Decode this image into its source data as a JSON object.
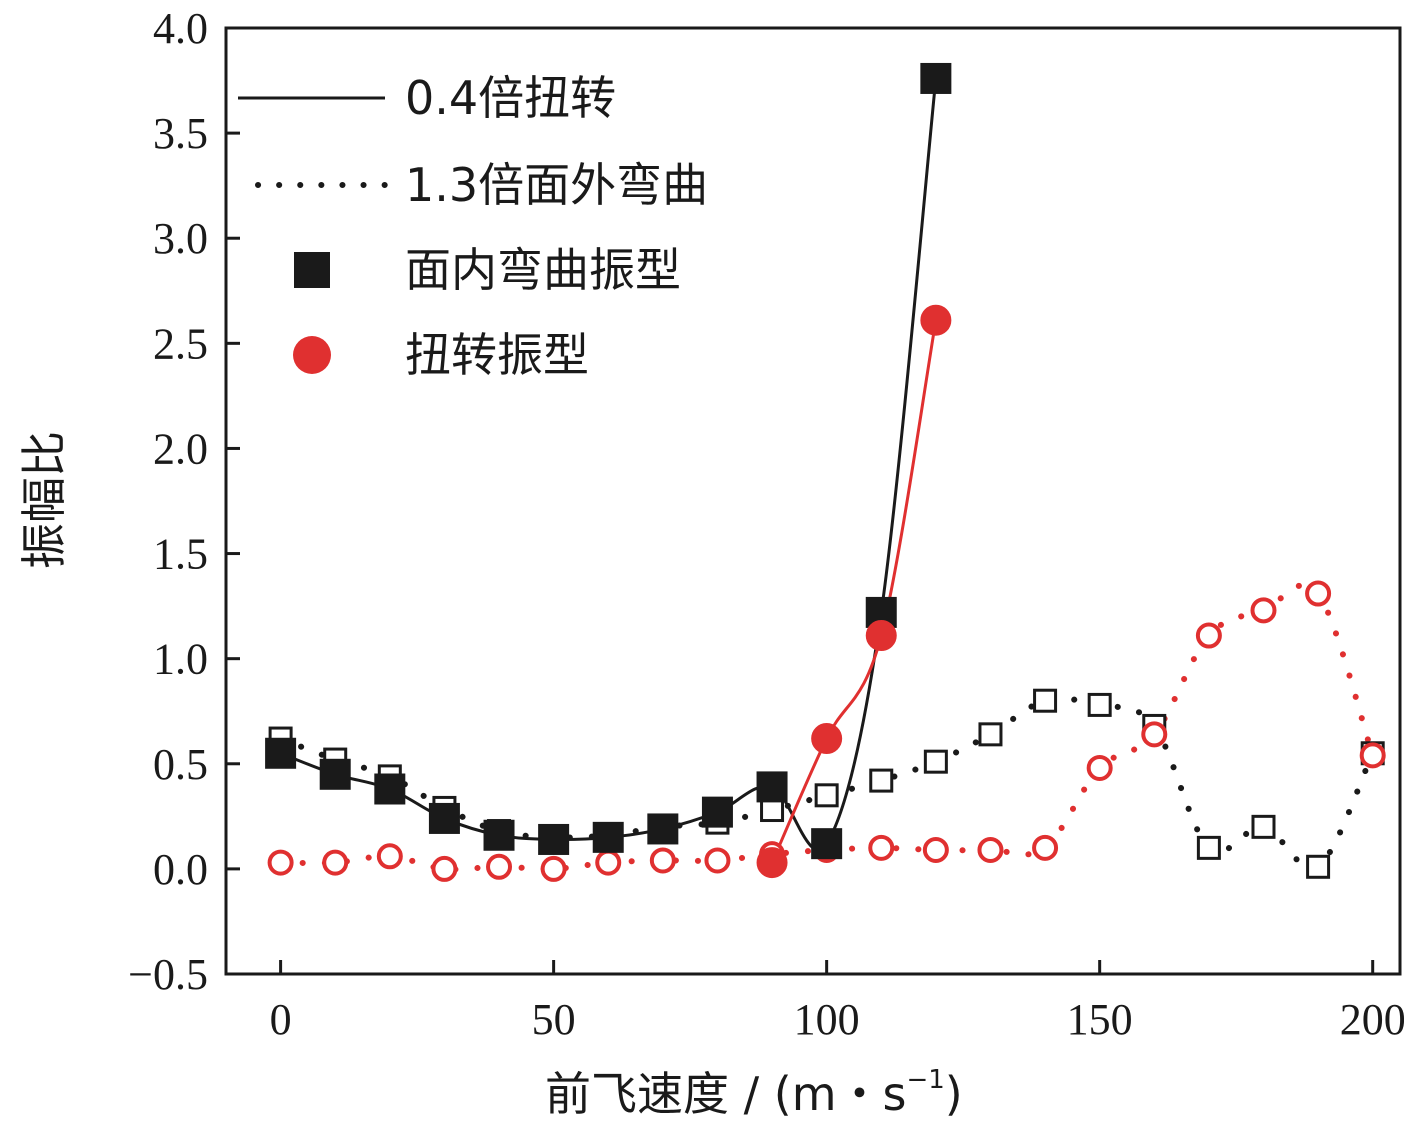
{
  "chart_data": {
    "type": "line",
    "xlabel": "前飞速度 / (m・s",
    "xlabel_sup": "−1",
    "xlabel_close": ")",
    "ylabel": "振幅比",
    "xlim": [
      -10,
      205
    ],
    "ylim": [
      -0.5,
      4.0
    ],
    "xticks": [
      0,
      50,
      100,
      150,
      200
    ],
    "yticks": [
      -0.5,
      0.0,
      0.5,
      1.0,
      1.5,
      2.0,
      2.5,
      3.0,
      3.5,
      4.0
    ],
    "ytick_labels": [
      "−0.5",
      "0.0",
      "0.5",
      "1.0",
      "1.5",
      "2.0",
      "2.5",
      "3.0",
      "3.5",
      "4.0"
    ],
    "xtick_labels": [
      "0",
      "50",
      "100",
      "150",
      "200"
    ],
    "grid": false,
    "legend_position": "top-left",
    "legend": [
      {
        "label": "0.4倍扭转",
        "kind": "solid-line",
        "color": "#1a1a1a"
      },
      {
        "label": "1.3倍面外弯曲",
        "kind": "dotted-line",
        "color": "#1a1a1a"
      },
      {
        "label": "面内弯曲振型",
        "kind": "square-marker",
        "color": "#1a1a1a"
      },
      {
        "label": "扭转振型",
        "kind": "circle-marker",
        "color": "#e03030"
      }
    ],
    "series": [
      {
        "line": "solid",
        "marker": "square",
        "fill": "filled",
        "color": "#1a1a1a",
        "x": [
          0,
          10,
          20,
          30,
          40,
          50,
          60,
          70,
          80,
          90,
          100,
          110,
          120
        ],
        "y": [
          0.55,
          0.45,
          0.38,
          0.24,
          0.16,
          0.14,
          0.15,
          0.19,
          0.27,
          0.39,
          0.12,
          1.22,
          3.76
        ]
      },
      {
        "line": "solid",
        "marker": "circle",
        "fill": "filled",
        "color": "#e03030",
        "x": [
          90,
          100,
          110,
          120
        ],
        "y": [
          0.03,
          0.62,
          1.11,
          2.61
        ]
      },
      {
        "line": "dotted",
        "marker": "square",
        "fill": "open",
        "color": "#1a1a1a",
        "x": [
          0,
          10,
          20,
          30,
          40,
          50,
          60,
          70,
          80,
          90,
          100,
          110,
          120,
          130,
          140,
          150,
          160,
          170,
          180,
          190,
          200
        ],
        "y": [
          0.62,
          0.52,
          0.44,
          0.29,
          0.18,
          0.15,
          0.16,
          0.2,
          0.22,
          0.28,
          0.35,
          0.42,
          0.51,
          0.64,
          0.8,
          0.78,
          0.68,
          0.1,
          0.2,
          0.01,
          0.55
        ]
      },
      {
        "line": "dotted",
        "marker": "circle",
        "fill": "open",
        "color": "#e03030",
        "x": [
          0,
          10,
          20,
          30,
          40,
          50,
          60,
          70,
          80,
          90,
          100,
          110,
          120,
          130,
          140,
          150,
          160,
          170,
          180,
          190,
          200
        ],
        "y": [
          0.03,
          0.03,
          0.06,
          0.0,
          0.01,
          0.0,
          0.03,
          0.04,
          0.04,
          0.07,
          0.09,
          0.1,
          0.09,
          0.09,
          0.1,
          0.48,
          0.64,
          1.11,
          1.23,
          1.31,
          0.54
        ]
      }
    ]
  }
}
